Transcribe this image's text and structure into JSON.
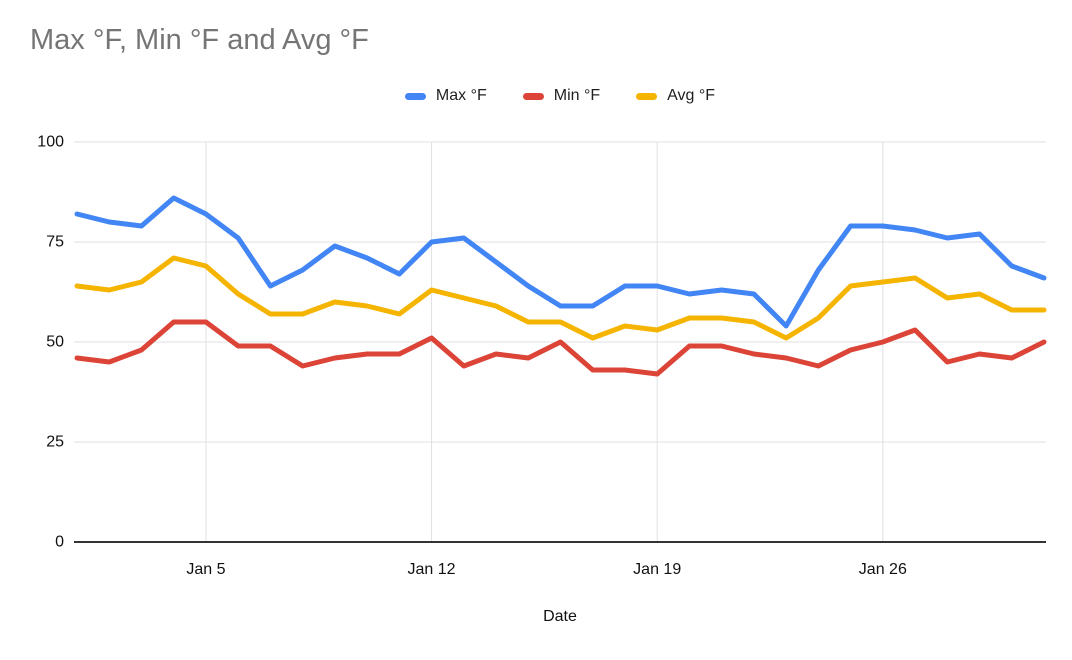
{
  "chart_data": {
    "type": "line",
    "title": "Max °F, Min °F and Avg °F",
    "xlabel": "Date",
    "ylabel": "",
    "ylim": [
      0,
      100
    ],
    "y_ticks": [
      0,
      25,
      50,
      75,
      100
    ],
    "grid": true,
    "legend_position": "top",
    "x_categories": [
      "Jan 1",
      "Jan 2",
      "Jan 3",
      "Jan 4",
      "Jan 5",
      "Jan 6",
      "Jan 7",
      "Jan 8",
      "Jan 9",
      "Jan 10",
      "Jan 11",
      "Jan 12",
      "Jan 13",
      "Jan 14",
      "Jan 15",
      "Jan 16",
      "Jan 17",
      "Jan 18",
      "Jan 19",
      "Jan 20",
      "Jan 21",
      "Jan 22",
      "Jan 23",
      "Jan 24",
      "Jan 25",
      "Jan 26",
      "Jan 27",
      "Jan 28",
      "Jan 29",
      "Jan 30",
      "Jan 31"
    ],
    "x_tick_indices": [
      4,
      11,
      18,
      25
    ],
    "x_tick_labels": [
      "Jan 5",
      "Jan 12",
      "Jan 19",
      "Jan 26"
    ],
    "series": [
      {
        "name": "Max °F",
        "color": "#4285F4",
        "values": [
          82,
          80,
          79,
          86,
          82,
          76,
          64,
          68,
          74,
          71,
          67,
          75,
          76,
          70,
          64,
          59,
          59,
          64,
          64,
          62,
          63,
          62,
          54,
          68,
          79,
          79,
          78,
          76,
          77,
          69,
          66
        ]
      },
      {
        "name": "Min °F",
        "color": "#DB4437",
        "values": [
          46,
          45,
          48,
          55,
          55,
          49,
          49,
          44,
          46,
          47,
          47,
          51,
          44,
          47,
          46,
          50,
          43,
          43,
          42,
          49,
          49,
          47,
          46,
          44,
          48,
          50,
          53,
          45,
          47,
          46,
          50
        ]
      },
      {
        "name": "Avg °F",
        "color": "#F4B400",
        "values": [
          64,
          63,
          65,
          71,
          69,
          62,
          57,
          57,
          60,
          59,
          57,
          63,
          61,
          59,
          55,
          55,
          51,
          54,
          53,
          56,
          56,
          55,
          51,
          56,
          64,
          65,
          66,
          61,
          62,
          58,
          58
        ]
      }
    ],
    "colors": {
      "grid_line": "#e0e0e0",
      "axis_line": "#333333",
      "title_text": "#757575",
      "tick_text": "#111111"
    }
  }
}
